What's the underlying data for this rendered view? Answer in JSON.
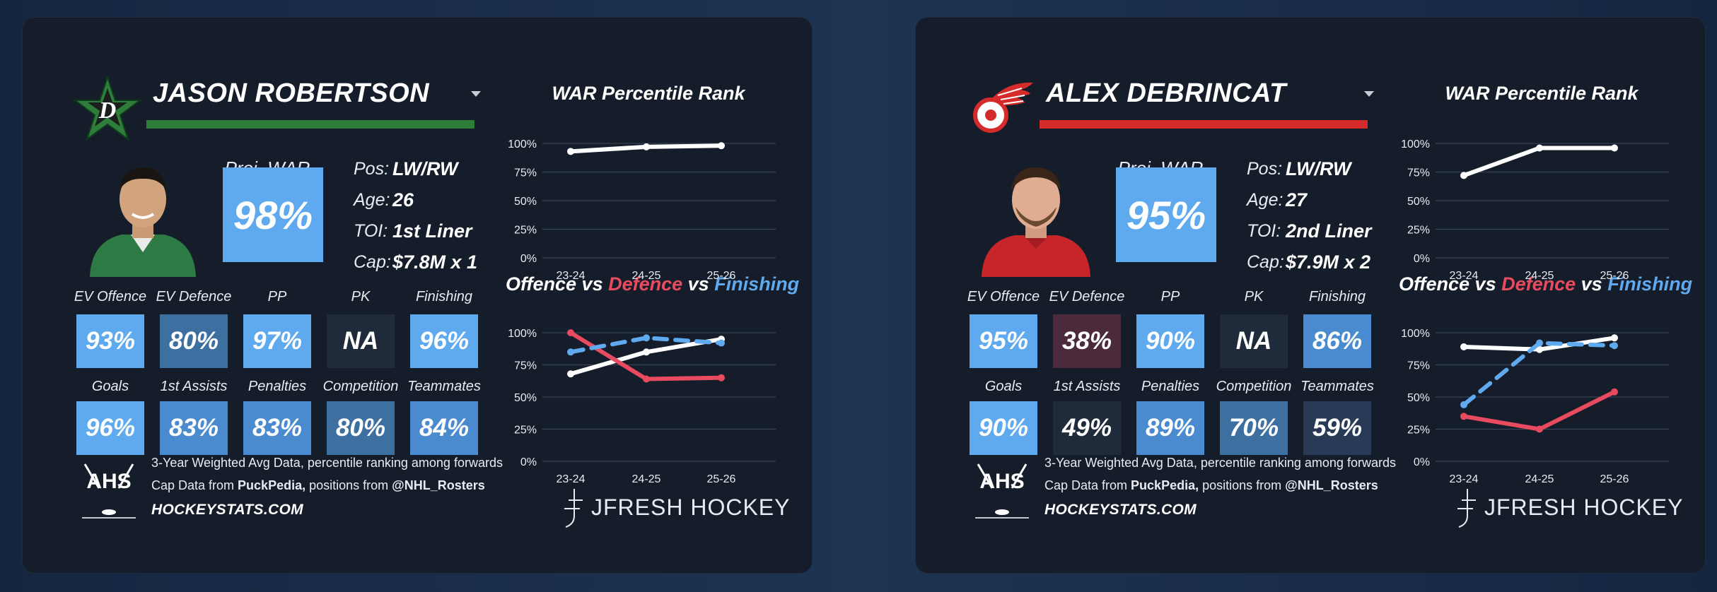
{
  "colors": {
    "tile_high": "#5fa9ef",
    "tile_mid": "#4a8bcf",
    "tile_midlow": "#3d6fa0",
    "tile_low": "#2f4c70",
    "tile_lowest": "#283a55",
    "tile_na": "#1f2a3a",
    "tile_bad": "#4b2a3c",
    "card_bg": "#161d2a",
    "line_white": "#ffffff",
    "line_red": "#e84a5f",
    "line_blue": "#5fa9ef"
  },
  "players": [
    {
      "name": "JASON ROBERTSON",
      "team_color": "#2f7d3b",
      "logo_icon": "dallas-stars-logo",
      "proj_label": "Proj. WAR %",
      "proj_value": "98%",
      "bio": [
        {
          "label": "Pos:",
          "value": "LW/RW"
        },
        {
          "label": "Age:",
          "value": "26"
        },
        {
          "label": "TOI:",
          "value": "1st Liner"
        },
        {
          "label": "Cap:",
          "value": "$7.8M x 1"
        }
      ],
      "tiles_row1": [
        {
          "label": "EV Offence",
          "value": "93%",
          "color": "#5fa9ef"
        },
        {
          "label": "EV Defence",
          "value": "80%",
          "color": "#3d6fa0"
        },
        {
          "label": "PP",
          "value": "97%",
          "color": "#5fa9ef"
        },
        {
          "label": "PK",
          "value": "NA",
          "color": "#1f2a3a"
        },
        {
          "label": "Finishing",
          "value": "96%",
          "color": "#5fa9ef"
        }
      ],
      "tiles_row2": [
        {
          "label": "Goals",
          "value": "96%",
          "color": "#5fa9ef"
        },
        {
          "label": "1st Assists",
          "value": "83%",
          "color": "#4a8bcf"
        },
        {
          "label": "Penalties",
          "value": "83%",
          "color": "#4a8bcf"
        },
        {
          "label": "Competition",
          "value": "80%",
          "color": "#3d6fa0"
        },
        {
          "label": "Teammates",
          "value": "84%",
          "color": "#4a8bcf"
        }
      ],
      "footer": {
        "line1": "3-Year Weighted Avg Data, percentile ranking among forwards",
        "line2_prefix": "Cap Data from ",
        "line2_cap": "PuckPedia,",
        "line2_mid": " positions from ",
        "line2_handle": "@NHL_Rosters",
        "site": "HOCKEYSTATS.COM",
        "ahs_text": "AHS",
        "brand": "JFRESH HOCKEY"
      },
      "war_title": "WAR Percentile Rank",
      "off_title": {
        "a": "Offence",
        "vs1": " vs ",
        "b": "Defence",
        "vs2": " vs ",
        "c": "Finishing"
      },
      "chart_data": [
        {
          "type": "line",
          "title": "WAR Percentile Rank",
          "categories": [
            "23-24",
            "24-25",
            "25-26"
          ],
          "yticks": [
            "100%",
            "75%",
            "50%",
            "25%",
            "0%"
          ],
          "ylim": [
            0,
            100
          ],
          "series": [
            {
              "values": [
                93,
                97,
                98
              ],
              "color": "#ffffff",
              "dashed": false
            }
          ]
        },
        {
          "type": "line",
          "title": "Offence vs Defence vs Finishing",
          "categories": [
            "23-24",
            "24-25",
            "25-26"
          ],
          "yticks": [
            "100%",
            "75%",
            "50%",
            "25%",
            "0%"
          ],
          "ylim": [
            0,
            100
          ],
          "series": [
            {
              "name": "Offence",
              "values": [
                68,
                85,
                95
              ],
              "color": "#ffffff",
              "dashed": false
            },
            {
              "name": "Defence",
              "values": [
                100,
                64,
                65
              ],
              "color": "#e84a5f",
              "dashed": false
            },
            {
              "name": "Finishing",
              "values": [
                85,
                96,
                92
              ],
              "color": "#5fa9ef",
              "dashed": true
            }
          ]
        }
      ]
    },
    {
      "name": "ALEX DEBRINCAT",
      "team_color": "#d62b2b",
      "logo_icon": "red-wings-logo",
      "proj_label": "Proj. WAR %",
      "proj_value": "95%",
      "bio": [
        {
          "label": "Pos:",
          "value": "LW/RW"
        },
        {
          "label": "Age:",
          "value": "27"
        },
        {
          "label": "TOI:",
          "value": "2nd Liner"
        },
        {
          "label": "Cap:",
          "value": "$7.9M x 2"
        }
      ],
      "tiles_row1": [
        {
          "label": "EV Offence",
          "value": "95%",
          "color": "#5fa9ef"
        },
        {
          "label": "EV Defence",
          "value": "38%",
          "color": "#4b2a3c"
        },
        {
          "label": "PP",
          "value": "90%",
          "color": "#5fa9ef"
        },
        {
          "label": "PK",
          "value": "NA",
          "color": "#1f2a3a"
        },
        {
          "label": "Finishing",
          "value": "86%",
          "color": "#4a8bcf"
        }
      ],
      "tiles_row2": [
        {
          "label": "Goals",
          "value": "90%",
          "color": "#5fa9ef"
        },
        {
          "label": "1st Assists",
          "value": "49%",
          "color": "#1f2a3a"
        },
        {
          "label": "Penalties",
          "value": "89%",
          "color": "#4a8bcf"
        },
        {
          "label": "Competition",
          "value": "70%",
          "color": "#3d6fa0"
        },
        {
          "label": "Teammates",
          "value": "59%",
          "color": "#283a55"
        }
      ],
      "footer": {
        "line1": "3-Year Weighted Avg Data, percentile ranking among forwards",
        "line2_prefix": "Cap Data from ",
        "line2_cap": "PuckPedia,",
        "line2_mid": " positions from ",
        "line2_handle": "@NHL_Rosters",
        "site": "HOCKEYSTATS.COM",
        "ahs_text": "AHS",
        "brand": "JFRESH HOCKEY"
      },
      "war_title": "WAR Percentile Rank",
      "off_title": {
        "a": "Offence",
        "vs1": " vs ",
        "b": "Defence",
        "vs2": " vs ",
        "c": "Finishing"
      },
      "chart_data": [
        {
          "type": "line",
          "title": "WAR Percentile Rank",
          "categories": [
            "23-24",
            "24-25",
            "25-26"
          ],
          "yticks": [
            "100%",
            "75%",
            "50%",
            "25%",
            "0%"
          ],
          "ylim": [
            0,
            100
          ],
          "series": [
            {
              "values": [
                72,
                96,
                96
              ],
              "color": "#ffffff",
              "dashed": false
            }
          ]
        },
        {
          "type": "line",
          "title": "Offence vs Defence vs Finishing",
          "categories": [
            "23-24",
            "24-25",
            "25-26"
          ],
          "yticks": [
            "100%",
            "75%",
            "50%",
            "25%",
            "0%"
          ],
          "ylim": [
            0,
            100
          ],
          "series": [
            {
              "name": "Offence",
              "values": [
                89,
                87,
                96
              ],
              "color": "#ffffff",
              "dashed": false
            },
            {
              "name": "Defence",
              "values": [
                35,
                25,
                54
              ],
              "color": "#e84a5f",
              "dashed": false
            },
            {
              "name": "Finishing",
              "values": [
                44,
                92,
                90
              ],
              "color": "#5fa9ef",
              "dashed": true
            }
          ]
        }
      ]
    }
  ]
}
